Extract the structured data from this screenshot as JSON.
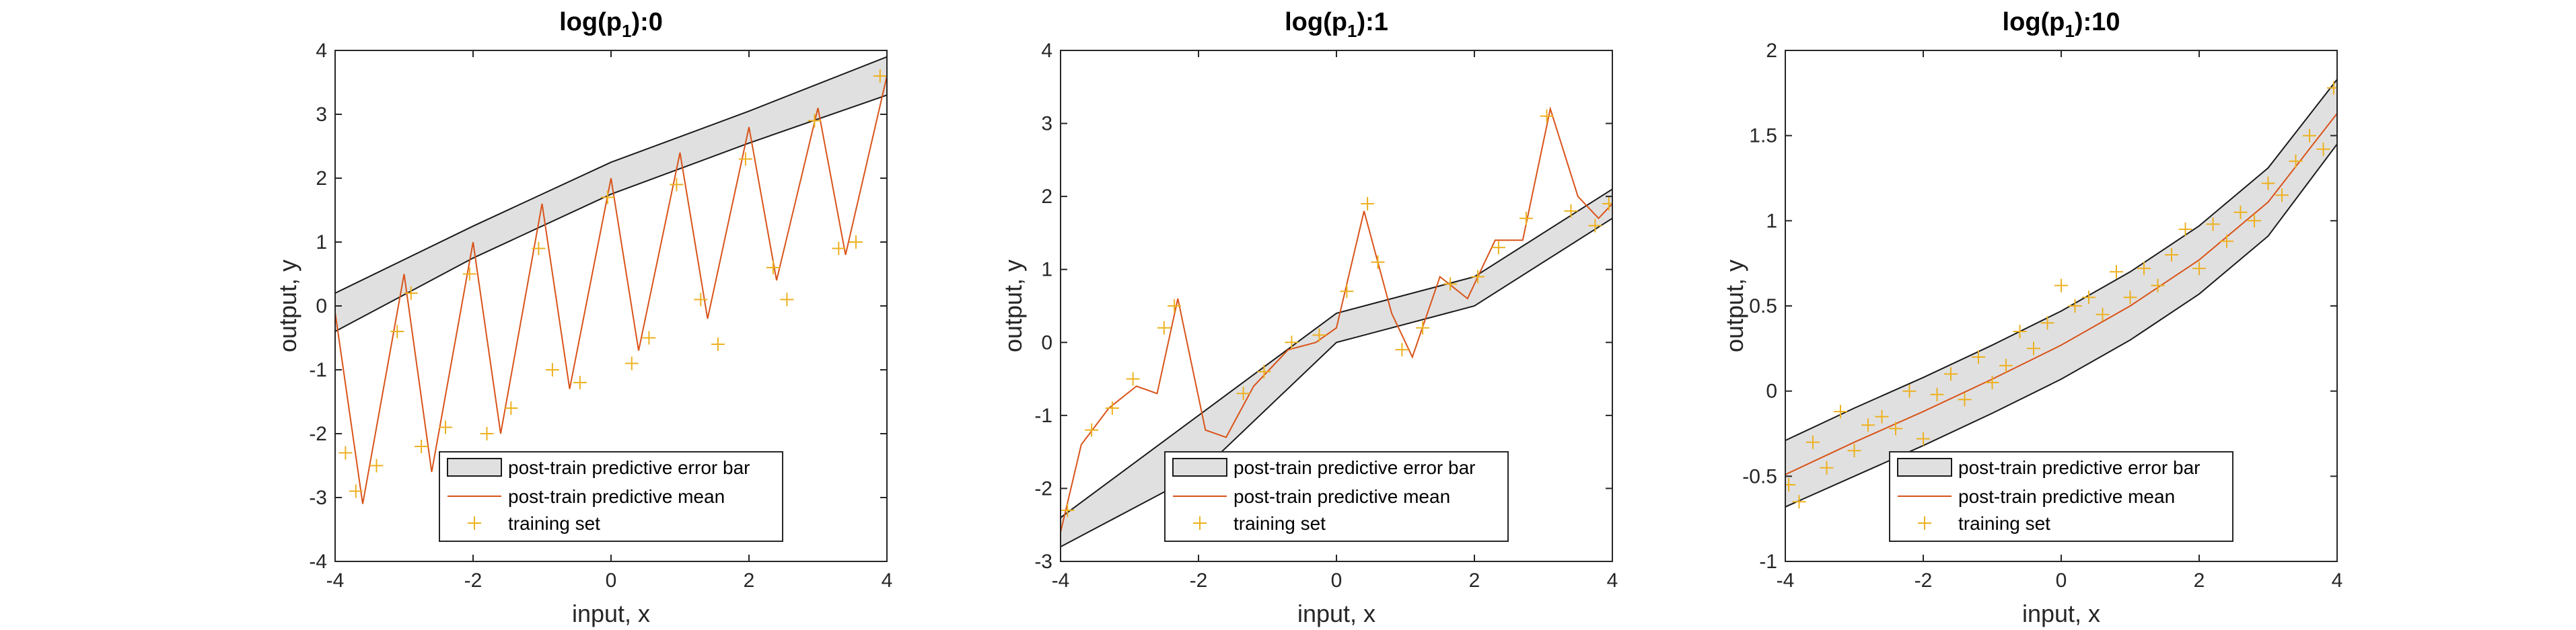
{
  "colors": {
    "band_fill": "#e0e0e0",
    "band_edge": "#1a1a1a",
    "mean": "#d95319",
    "points": "#edb120"
  },
  "chart_data": [
    {
      "type": "line",
      "title": {
        "base": "log(p",
        "sub": "1",
        "suffix": "):0"
      },
      "xlabel": "input, x",
      "ylabel": "output, y",
      "xlim": [
        -4,
        4
      ],
      "ylim": [
        -4,
        4
      ],
      "xticks": [
        "-4",
        "-2",
        "0",
        "2",
        "4"
      ],
      "yticks": [
        "-4",
        "-3",
        "-2",
        "-1",
        "0",
        "1",
        "2",
        "3",
        "4"
      ],
      "legend": {
        "position": "bottom-center",
        "entries": [
          "post-train predictive error bar",
          "post-train predictive mean",
          "training set"
        ]
      },
      "series": [
        {
          "name": "post-train predictive mean",
          "x": [
            -4.0,
            -3.6,
            -3.0,
            -2.6,
            -2.0,
            -1.6,
            -1.0,
            -0.6,
            0.0,
            0.4,
            1.0,
            1.4,
            2.0,
            2.4,
            3.0,
            3.4,
            4.0
          ],
          "y": [
            -0.1,
            -3.1,
            0.5,
            -2.6,
            1.0,
            -2.0,
            1.6,
            -1.3,
            2.0,
            -0.7,
            2.4,
            -0.2,
            2.8,
            0.4,
            3.1,
            0.8,
            3.6
          ]
        },
        {
          "name": "post-train predictive error bar",
          "x": [
            -4,
            -2,
            0,
            2,
            4
          ],
          "lower": [
            -0.4,
            0.75,
            1.75,
            2.55,
            3.3
          ],
          "upper": [
            0.2,
            1.25,
            2.25,
            3.05,
            3.9
          ]
        },
        {
          "name": "training set",
          "x": [
            -3.85,
            -3.7,
            -3.4,
            -3.1,
            -2.9,
            -2.75,
            -2.4,
            -2.05,
            -1.8,
            -1.45,
            -1.05,
            -0.85,
            -0.45,
            -0.05,
            0.3,
            0.55,
            0.95,
            1.3,
            1.55,
            1.95,
            2.35,
            2.55,
            2.95,
            3.3,
            3.55,
            3.9
          ],
          "y": [
            -2.3,
            -2.9,
            -2.5,
            -0.4,
            0.2,
            -2.2,
            -1.9,
            0.5,
            -2.0,
            -1.6,
            0.9,
            -1.0,
            -1.2,
            1.7,
            -0.9,
            -0.5,
            1.9,
            0.1,
            -0.6,
            2.3,
            0.6,
            0.1,
            2.9,
            0.9,
            1.0,
            3.6
          ]
        }
      ]
    },
    {
      "type": "line",
      "title": {
        "base": "log(p",
        "sub": "1",
        "suffix": "):1"
      },
      "xlabel": "input, x",
      "ylabel": "output, y",
      "xlim": [
        -4,
        4
      ],
      "ylim": [
        -3,
        4
      ],
      "xticks": [
        "-4",
        "-2",
        "0",
        "2",
        "4"
      ],
      "yticks": [
        "-3",
        "-2",
        "-1",
        "0",
        "1",
        "2",
        "3",
        "4"
      ],
      "legend": {
        "position": "bottom-center",
        "entries": [
          "post-train predictive error bar",
          "post-train predictive mean",
          "training set"
        ]
      },
      "series": [
        {
          "name": "post-train predictive mean",
          "x": [
            -4.0,
            -3.7,
            -3.3,
            -2.9,
            -2.6,
            -2.3,
            -1.9,
            -1.6,
            -1.2,
            -0.7,
            -0.3,
            0.0,
            0.4,
            0.8,
            1.1,
            1.5,
            1.9,
            2.3,
            2.7,
            3.1,
            3.5,
            3.8,
            4.0
          ],
          "y": [
            -2.6,
            -1.4,
            -0.9,
            -0.6,
            -0.7,
            0.6,
            -1.2,
            -1.3,
            -0.6,
            -0.1,
            0.0,
            0.2,
            1.8,
            0.4,
            -0.2,
            0.9,
            0.6,
            1.4,
            1.4,
            3.2,
            2.0,
            1.7,
            1.9
          ]
        },
        {
          "name": "post-train predictive error bar",
          "x": [
            -4,
            -2,
            0,
            2,
            4
          ],
          "lower": [
            -2.8,
            -1.8,
            0.0,
            0.5,
            1.7
          ],
          "upper": [
            -2.4,
            -1.0,
            0.4,
            0.9,
            2.1
          ]
        },
        {
          "name": "training set",
          "x": [
            -3.9,
            -3.55,
            -3.25,
            -2.95,
            -2.5,
            -2.35,
            -1.35,
            -1.05,
            -0.65,
            -0.25,
            0.15,
            0.45,
            0.6,
            0.95,
            1.25,
            1.65,
            2.05,
            2.35,
            2.75,
            3.05,
            3.4,
            3.75,
            3.95
          ],
          "y": [
            -2.3,
            -1.2,
            -0.9,
            -0.5,
            0.2,
            0.5,
            -0.7,
            -0.4,
            0.0,
            0.1,
            0.7,
            1.9,
            1.1,
            -0.1,
            0.2,
            0.8,
            0.9,
            1.3,
            1.7,
            3.1,
            1.8,
            1.6,
            1.9
          ]
        }
      ]
    },
    {
      "type": "line",
      "title": {
        "base": "log(p",
        "sub": "1",
        "suffix": "):10"
      },
      "xlabel": "input, x",
      "ylabel": "output, y",
      "xlim": [
        -4,
        4
      ],
      "ylim": [
        -1,
        2
      ],
      "xticks": [
        "-4",
        "-2",
        "0",
        "2",
        "4"
      ],
      "yticks": [
        "-1",
        "-0.5",
        "0",
        "0.5",
        "1",
        "1.5",
        "2"
      ],
      "legend": {
        "position": "bottom-center",
        "entries": [
          "post-train predictive error bar",
          "post-train predictive mean",
          "training set"
        ]
      },
      "series": [
        {
          "name": "post-train predictive mean",
          "x": [
            -4,
            -3,
            -2,
            -1,
            0,
            1,
            2,
            3,
            4
          ],
          "y": [
            -0.49,
            -0.3,
            -0.12,
            0.07,
            0.27,
            0.5,
            0.77,
            1.11,
            1.63
          ]
        },
        {
          "name": "post-train predictive error bar",
          "x": [
            -4,
            -3,
            -2,
            -1,
            0,
            1,
            2,
            3,
            4
          ],
          "lower": [
            -0.68,
            -0.5,
            -0.32,
            -0.13,
            0.07,
            0.3,
            0.57,
            0.91,
            1.45
          ],
          "upper": [
            -0.29,
            -0.1,
            0.08,
            0.27,
            0.47,
            0.7,
            0.97,
            1.31,
            1.83
          ]
        },
        {
          "name": "training set",
          "x": [
            -3.95,
            -3.8,
            -3.6,
            -3.4,
            -3.2,
            -3.0,
            -2.8,
            -2.6,
            -2.4,
            -2.2,
            -2.0,
            -1.8,
            -1.6,
            -1.4,
            -1.2,
            -1.0,
            -0.8,
            -0.6,
            -0.4,
            -0.2,
            0.0,
            0.2,
            0.4,
            0.6,
            0.8,
            1.0,
            1.2,
            1.4,
            1.6,
            1.8,
            2.0,
            2.2,
            2.4,
            2.6,
            2.8,
            3.0,
            3.2,
            3.4,
            3.6,
            3.8,
            3.95
          ],
          "y": [
            -0.55,
            -0.65,
            -0.3,
            -0.45,
            -0.12,
            -0.35,
            -0.2,
            -0.15,
            -0.22,
            0.0,
            -0.28,
            -0.02,
            0.1,
            -0.05,
            0.2,
            0.05,
            0.15,
            0.35,
            0.25,
            0.4,
            0.62,
            0.5,
            0.55,
            0.45,
            0.7,
            0.55,
            0.72,
            0.62,
            0.8,
            0.95,
            0.72,
            0.98,
            0.88,
            1.05,
            1.0,
            1.22,
            1.15,
            1.35,
            1.5,
            1.42,
            1.78
          ]
        }
      ]
    }
  ]
}
